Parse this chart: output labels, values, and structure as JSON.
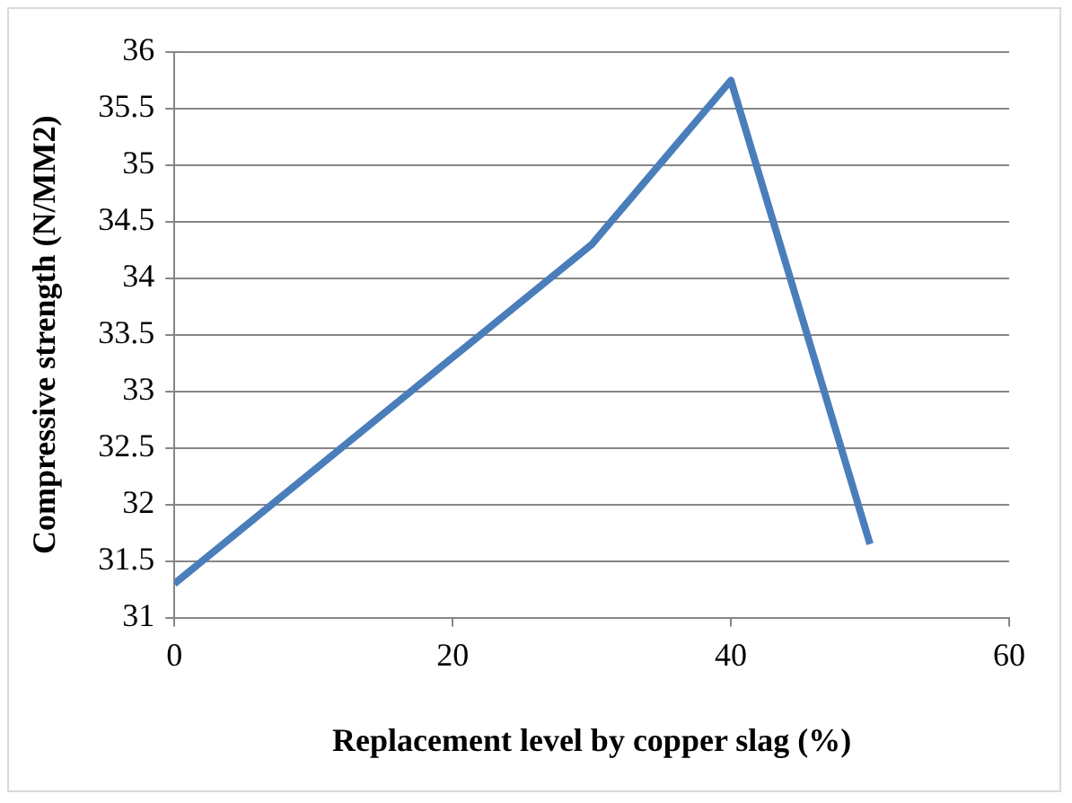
{
  "chart_data": {
    "type": "line",
    "xlabel": "Replacement level by copper slag (%)",
    "ylabel": "Compressive strength (N/MM2)",
    "x": [
      0,
      30,
      40,
      50
    ],
    "series": [
      {
        "color": "#4a7ebb",
        "values": [
          31.3,
          34.3,
          35.75,
          31.65
        ]
      }
    ],
    "xlim": [
      0,
      60
    ],
    "xticks": [
      0,
      20,
      40,
      60
    ],
    "ylim": [
      31,
      36
    ],
    "yticks": [
      31,
      31.5,
      32,
      32.5,
      33,
      33.5,
      34,
      34.5,
      35,
      35.5,
      36
    ],
    "grid": "y",
    "legend": false,
    "marker": "none",
    "line_style": "solid"
  }
}
